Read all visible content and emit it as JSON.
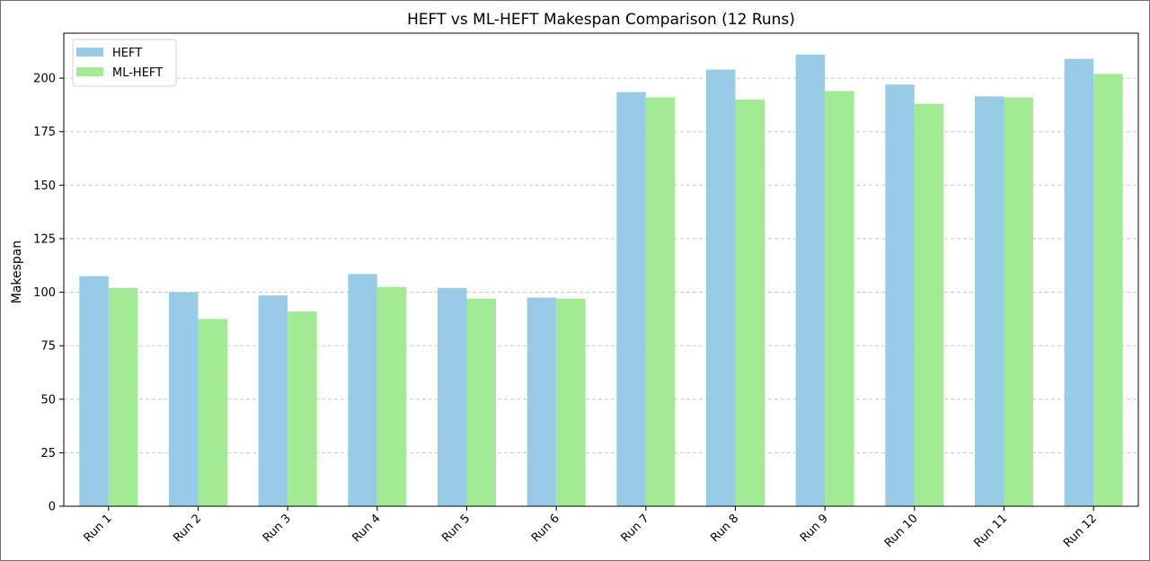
{
  "chart_data": {
    "type": "bar",
    "title": "HEFT vs ML-HEFT Makespan Comparison (12 Runs)",
    "xlabel": "",
    "ylabel": "Makespan",
    "categories": [
      "Run 1",
      "Run 2",
      "Run 3",
      "Run 4",
      "Run 5",
      "Run 6",
      "Run 7",
      "Run 8",
      "Run 9",
      "Run 10",
      "Run 11",
      "Run 12"
    ],
    "series": [
      {
        "name": "HEFT",
        "color": "#98cbe6",
        "values": [
          107.5,
          100,
          98.5,
          108.5,
          102,
          97.5,
          193.5,
          204,
          211,
          197,
          191.5,
          209
        ]
      },
      {
        "name": "ML-HEFT",
        "color": "#a2eb94",
        "values": [
          102,
          87.5,
          91,
          102.5,
          97,
          97,
          191,
          190,
          194,
          188,
          191,
          202
        ]
      }
    ],
    "ylim": [
      0,
      221
    ],
    "yticks": [
      0,
      25,
      50,
      75,
      100,
      125,
      150,
      175,
      200
    ],
    "grid": "y-dashed",
    "legend_position": "top-left"
  }
}
